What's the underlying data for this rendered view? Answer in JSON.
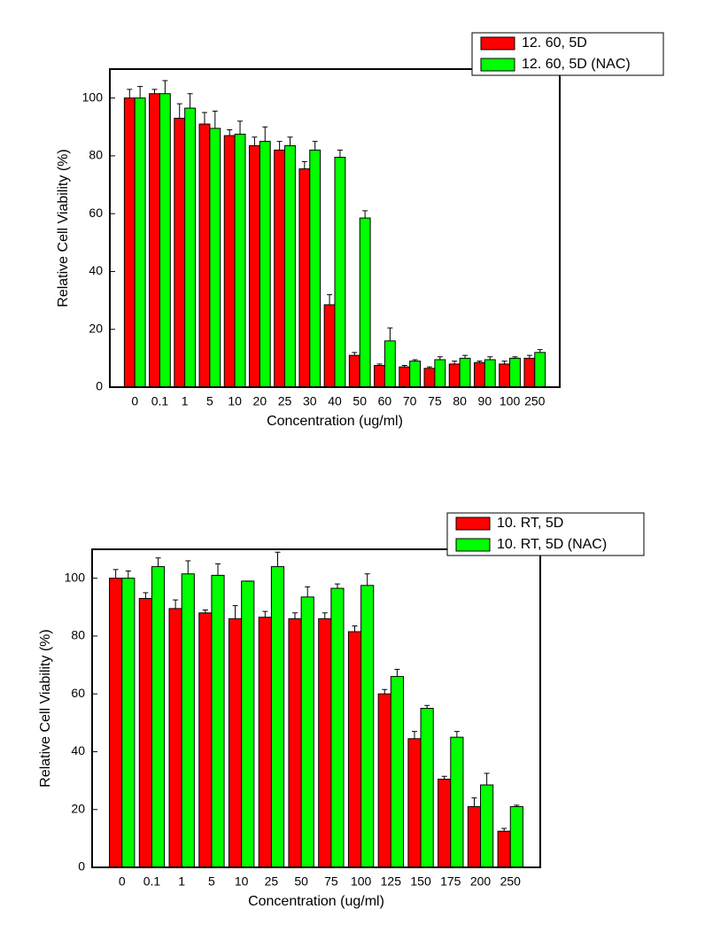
{
  "chart_data": [
    {
      "type": "bar",
      "x_label": "Concentration (ug/ml)",
      "y_label": "Relative Cell Viability (%)",
      "categories": [
        "0",
        "0.1",
        "1",
        "5",
        "10",
        "20",
        "25",
        "30",
        "40",
        "50",
        "60",
        "70",
        "75",
        "80",
        "90",
        "100",
        "250"
      ],
      "series": [
        {
          "name": "12. 60, 5D",
          "color": "#ff0000",
          "values": [
            100,
            101.5,
            93,
            91,
            87,
            83.5,
            82,
            75.5,
            28.5,
            11,
            7.5,
            7,
            6.5,
            8,
            8.5,
            8,
            10
          ],
          "errors": [
            3,
            1.5,
            5,
            4,
            2,
            3,
            3,
            2.5,
            3.5,
            1,
            0.5,
            0.5,
            0.5,
            1,
            0.5,
            1,
            1
          ]
        },
        {
          "name": "12. 60, 5D (NAC)",
          "color": "#00ff00",
          "values": [
            100,
            101.5,
            96.5,
            89.5,
            87.5,
            85,
            83.5,
            82,
            79.5,
            58.5,
            16,
            9,
            9.5,
            10,
            9.5,
            10,
            12
          ],
          "errors": [
            4,
            4.5,
            5,
            6,
            4.5,
            5,
            3,
            3,
            2.5,
            2.5,
            4.5,
            0.5,
            1,
            1,
            1,
            0.5,
            1
          ]
        }
      ],
      "ylim": [
        0,
        110
      ],
      "yticks": [
        0,
        20,
        40,
        60,
        80,
        100
      ],
      "legend": "upper right"
    },
    {
      "type": "bar",
      "x_label": "Concentration (ug/ml)",
      "y_label": "Relative Cell Viability (%)",
      "categories": [
        "0",
        "0.1",
        "1",
        "5",
        "10",
        "25",
        "50",
        "75",
        "100",
        "125",
        "150",
        "175",
        "200",
        "250"
      ],
      "series": [
        {
          "name": "10. RT, 5D",
          "color": "#ff0000",
          "values": [
            100,
            93,
            89.5,
            88,
            86,
            86.5,
            86,
            86,
            81.5,
            60,
            44.5,
            30.5,
            21,
            12.5
          ],
          "errors": [
            3,
            2,
            3,
            1,
            4.5,
            2,
            2,
            2,
            2,
            1.5,
            2.5,
            1,
            3,
            1
          ]
        },
        {
          "name": "10. RT, 5D (NAC)",
          "color": "#00ff00",
          "values": [
            100,
            104,
            101.5,
            101,
            99,
            104,
            93.5,
            96.5,
            97.5,
            66,
            55,
            45,
            28.5,
            21
          ],
          "errors": [
            2.5,
            3,
            4.5,
            4,
            0,
            5,
            3.5,
            1.5,
            4,
            2.5,
            1,
            2,
            4,
            0.5
          ]
        }
      ],
      "ylim": [
        0,
        110
      ],
      "yticks": [
        0,
        20,
        40,
        60,
        80,
        100
      ],
      "legend": "upper right"
    }
  ]
}
